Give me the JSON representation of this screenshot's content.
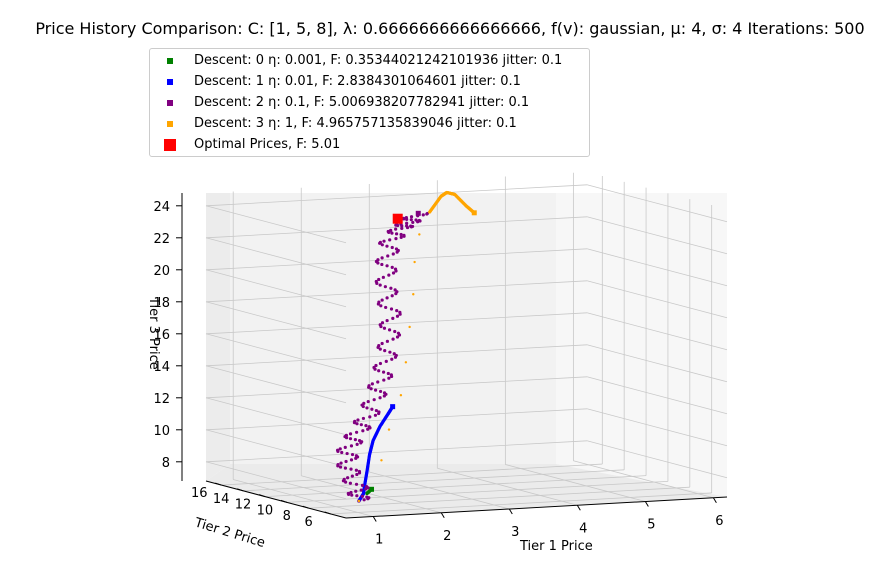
{
  "title": "Price History Comparison: C: [1, 5, 8], λ: 0.6666666666666666, f(v): gaussian, μ: 4, σ: 4 Iterations: 500",
  "legend": [
    {
      "label": "Descent: 0 η: 0.001, F: 0.35344021242101936 jitter: 0.1",
      "color": "#008000"
    },
    {
      "label": "Descent: 1 η: 0.01, F: 2.8384301064601 jitter: 0.1",
      "color": "#0000ff"
    },
    {
      "label": "Descent: 2 η: 0.1, F: 5.006938207782941 jitter: 0.1",
      "color": "#800080"
    },
    {
      "label": "Descent: 3 η: 1, F: 4.965757135839046 jitter: 0.1",
      "color": "#ffa500"
    },
    {
      "label": "Optimal Prices, F: 5.01",
      "color": "#ff0000"
    }
  ],
  "chart_data": {
    "type": "scatter",
    "title": "Price History Comparison: C: [1, 5, 8], λ: 0.6666666666666666, f(v): gaussian, μ: 4, σ: 4 Iterations: 500",
    "xlabel": "Tier 1 Price",
    "ylabel": "Tier 2 Price",
    "zlabel": "Tier 3 Price",
    "xticks": [
      "1",
      "2",
      "3",
      "4",
      "5",
      "6"
    ],
    "yticks": [
      "6",
      "8",
      "10",
      "12",
      "14",
      "16"
    ],
    "zticks": [
      "8",
      "10",
      "12",
      "14",
      "16",
      "18",
      "20",
      "22",
      "24"
    ],
    "xlim": [
      0.6,
      6.2
    ],
    "ylim": [
      4.6,
      17.4
    ],
    "zlim": [
      6.8,
      24.8
    ],
    "series": [
      {
        "name": "Descent: 0 η: 0.001, F: 0.35344021242101936 jitter: 0.1",
        "color": "#008000",
        "points": [
          [
            1.1,
            5.8,
            8.0
          ],
          [
            1.15,
            5.9,
            8.1
          ],
          [
            1.2,
            6.0,
            8.2
          ]
        ]
      },
      {
        "name": "Descent: 1 η: 0.01, F: 2.8384301064601 jitter: 0.1",
        "color": "#0000ff",
        "points": [
          [
            0.95,
            5.6,
            7.6
          ],
          [
            1.05,
            5.8,
            8.0
          ],
          [
            1.1,
            6.0,
            8.5
          ],
          [
            1.2,
            6.4,
            9.3
          ],
          [
            1.3,
            6.8,
            10.2
          ],
          [
            1.4,
            7.1,
            11.0
          ],
          [
            1.55,
            7.4,
            11.8
          ],
          [
            1.7,
            7.6,
            12.5
          ],
          [
            1.8,
            7.8,
            12.9
          ]
        ]
      },
      {
        "name": "Descent: 2 η: 0.1, F: 5.006938207782941 jitter: 0.1",
        "color": "#800080",
        "points": [
          [
            0.95,
            5.6,
            7.6
          ],
          [
            1.0,
            6.0,
            8.3
          ],
          [
            0.95,
            6.6,
            9.4
          ],
          [
            1.05,
            7.3,
            10.4
          ],
          [
            1.3,
            8.0,
            11.3
          ],
          [
            1.6,
            8.8,
            12.2
          ],
          [
            1.85,
            9.6,
            13.4
          ],
          [
            2.1,
            10.5,
            14.6
          ],
          [
            2.3,
            11.3,
            16.0
          ],
          [
            2.45,
            12.0,
            17.5
          ],
          [
            2.5,
            12.7,
            19.0
          ],
          [
            2.6,
            13.4,
            20.5
          ],
          [
            2.75,
            14.0,
            21.8
          ],
          [
            3.0,
            14.6,
            22.5
          ],
          [
            3.2,
            15.0,
            22.8
          ],
          [
            3.35,
            15.1,
            23.3
          ]
        ]
      },
      {
        "name": "Descent: 3 η: 1, F: 4.965757135839046 jitter: 0.1",
        "color": "#ffa500",
        "points": [
          [
            0.95,
            5.6,
            7.6
          ],
          [
            1.7,
            8.2,
            9.5
          ],
          [
            2.1,
            10.0,
            11.0
          ],
          [
            2.5,
            11.4,
            12.8
          ],
          [
            2.75,
            12.5,
            14.6
          ],
          [
            2.95,
            13.4,
            16.6
          ],
          [
            3.1,
            14.0,
            18.5
          ],
          [
            3.2,
            14.5,
            20.4
          ],
          [
            3.35,
            15.0,
            22.0
          ],
          [
            3.55,
            15.3,
            23.3
          ],
          [
            3.75,
            15.5,
            24.2
          ],
          [
            3.85,
            15.6,
            24.4
          ],
          [
            4.0,
            15.8,
            24.2
          ],
          [
            4.2,
            16.0,
            23.4
          ],
          [
            4.35,
            16.2,
            22.9
          ]
        ]
      },
      {
        "name": "Optimal Prices, F: 5.01",
        "color": "#ff0000",
        "points": [
          [
            3.0,
            14.8,
            23.1
          ]
        ]
      }
    ],
    "grid": true,
    "legend_position": "top-left"
  }
}
